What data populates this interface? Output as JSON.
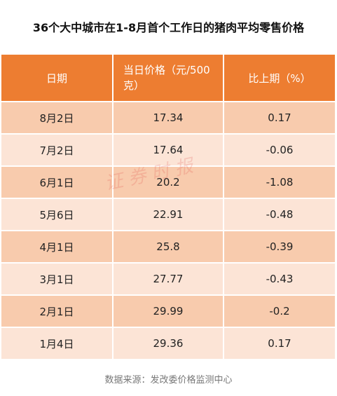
{
  "header": {
    "title": "36个大中城市在1-8月首个工作日的猪肉平均零售价格"
  },
  "table": {
    "columns": [
      "日期",
      "当日价格（元/500克）",
      "比上期（%）"
    ],
    "rows": [
      [
        "8月2日",
        "17.34",
        "0.17"
      ],
      [
        "7月2日",
        "17.64",
        "-0.06"
      ],
      [
        "6月1日",
        "20.2",
        "-1.08"
      ],
      [
        "5月6日",
        "22.91",
        "-0.48"
      ],
      [
        "4月1日",
        "25.8",
        "-0.39"
      ],
      [
        "3月1日",
        "27.77",
        "-0.43"
      ],
      [
        "2月1日",
        "29.99",
        "-0.2"
      ],
      [
        "1月4日",
        "29.36",
        "0.17"
      ]
    ]
  },
  "watermark": "证券时报",
  "footer": {
    "source": "数据来源：发改委价格监测中心"
  }
}
